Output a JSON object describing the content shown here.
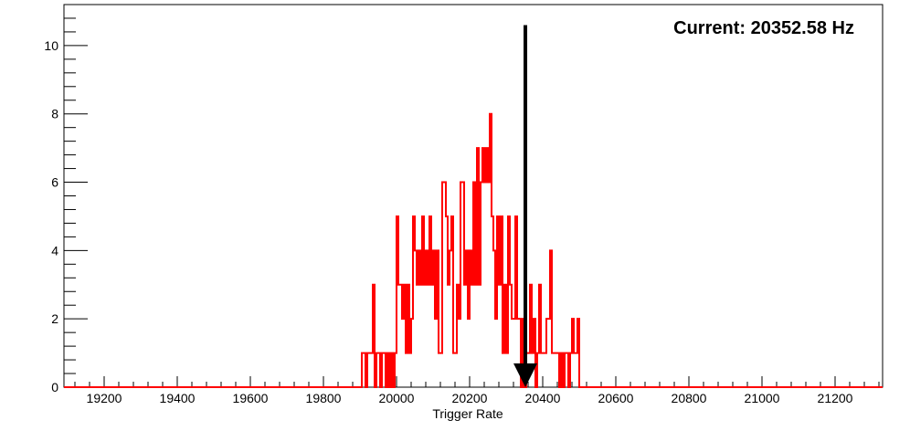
{
  "chart_data": {
    "type": "histogram",
    "title": "",
    "xlabel": "Trigger Rate",
    "ylabel": "",
    "xlim": [
      19090,
      21330
    ],
    "ylim": [
      0,
      11.2
    ],
    "x_ticks": [
      19200,
      19400,
      19600,
      19800,
      20000,
      20200,
      20400,
      20600,
      20800,
      21000,
      21200
    ],
    "x_tick_labels": [
      "19200",
      "19400",
      "19600",
      "19800",
      "20000",
      "20200",
      "20400",
      "20600",
      "20800",
      "21000",
      "21200"
    ],
    "y_ticks": [
      0,
      2,
      4,
      6,
      8,
      10
    ],
    "y_tick_labels": [
      "0",
      "2",
      "4",
      "6",
      "8",
      "10"
    ],
    "grid": false,
    "line_color": "#ff0000",
    "bins": [
      {
        "x": 19905,
        "y": 1
      },
      {
        "x": 19915,
        "y": 0
      },
      {
        "x": 19920,
        "y": 1
      },
      {
        "x": 19935,
        "y": 3
      },
      {
        "x": 19940,
        "y": 0
      },
      {
        "x": 19945,
        "y": 1
      },
      {
        "x": 19955,
        "y": 0
      },
      {
        "x": 19960,
        "y": 1
      },
      {
        "x": 19970,
        "y": 0
      },
      {
        "x": 19975,
        "y": 1
      },
      {
        "x": 19980,
        "y": 0
      },
      {
        "x": 19985,
        "y": 1
      },
      {
        "x": 19990,
        "y": 0
      },
      {
        "x": 19995,
        "y": 1
      },
      {
        "x": 20000,
        "y": 5
      },
      {
        "x": 20005,
        "y": 3
      },
      {
        "x": 20015,
        "y": 2
      },
      {
        "x": 20020,
        "y": 3
      },
      {
        "x": 20025,
        "y": 1
      },
      {
        "x": 20030,
        "y": 3
      },
      {
        "x": 20035,
        "y": 1
      },
      {
        "x": 20040,
        "y": 2
      },
      {
        "x": 20045,
        "y": 5
      },
      {
        "x": 20050,
        "y": 4
      },
      {
        "x": 20055,
        "y": 3
      },
      {
        "x": 20060,
        "y": 4
      },
      {
        "x": 20065,
        "y": 3
      },
      {
        "x": 20070,
        "y": 5
      },
      {
        "x": 20075,
        "y": 3
      },
      {
        "x": 20080,
        "y": 4
      },
      {
        "x": 20085,
        "y": 3
      },
      {
        "x": 20090,
        "y": 5
      },
      {
        "x": 20095,
        "y": 3
      },
      {
        "x": 20100,
        "y": 4
      },
      {
        "x": 20105,
        "y": 2
      },
      {
        "x": 20110,
        "y": 4
      },
      {
        "x": 20115,
        "y": 1
      },
      {
        "x": 20125,
        "y": 6
      },
      {
        "x": 20135,
        "y": 5
      },
      {
        "x": 20140,
        "y": 3
      },
      {
        "x": 20145,
        "y": 4
      },
      {
        "x": 20150,
        "y": 5
      },
      {
        "x": 20155,
        "y": 1
      },
      {
        "x": 20165,
        "y": 3
      },
      {
        "x": 20170,
        "y": 2
      },
      {
        "x": 20175,
        "y": 6
      },
      {
        "x": 20180,
        "y": 6
      },
      {
        "x": 20185,
        "y": 3
      },
      {
        "x": 20190,
        "y": 4
      },
      {
        "x": 20195,
        "y": 2
      },
      {
        "x": 20200,
        "y": 4
      },
      {
        "x": 20205,
        "y": 3
      },
      {
        "x": 20210,
        "y": 6
      },
      {
        "x": 20215,
        "y": 3
      },
      {
        "x": 20220,
        "y": 7
      },
      {
        "x": 20225,
        "y": 3
      },
      {
        "x": 20230,
        "y": 6
      },
      {
        "x": 20235,
        "y": 7
      },
      {
        "x": 20240,
        "y": 6
      },
      {
        "x": 20245,
        "y": 7
      },
      {
        "x": 20250,
        "y": 6
      },
      {
        "x": 20255,
        "y": 8
      },
      {
        "x": 20260,
        "y": 5
      },
      {
        "x": 20265,
        "y": 4
      },
      {
        "x": 20270,
        "y": 2
      },
      {
        "x": 20275,
        "y": 5
      },
      {
        "x": 20280,
        "y": 3
      },
      {
        "x": 20285,
        "y": 5
      },
      {
        "x": 20290,
        "y": 1
      },
      {
        "x": 20295,
        "y": 3
      },
      {
        "x": 20300,
        "y": 1
      },
      {
        "x": 20305,
        "y": 5
      },
      {
        "x": 20310,
        "y": 3
      },
      {
        "x": 20315,
        "y": 2
      },
      {
        "x": 20325,
        "y": 5
      },
      {
        "x": 20330,
        "y": 2
      },
      {
        "x": 20340,
        "y": 0
      },
      {
        "x": 20345,
        "y": 2
      },
      {
        "x": 20350,
        "y": 0
      },
      {
        "x": 20355,
        "y": 1
      },
      {
        "x": 20365,
        "y": 3
      },
      {
        "x": 20370,
        "y": 1
      },
      {
        "x": 20375,
        "y": 2
      },
      {
        "x": 20380,
        "y": 0
      },
      {
        "x": 20385,
        "y": 1
      },
      {
        "x": 20390,
        "y": 3
      },
      {
        "x": 20395,
        "y": 1
      },
      {
        "x": 20410,
        "y": 2
      },
      {
        "x": 20420,
        "y": 4
      },
      {
        "x": 20425,
        "y": 1
      },
      {
        "x": 20445,
        "y": 0
      },
      {
        "x": 20450,
        "y": 1
      },
      {
        "x": 20455,
        "y": 0
      },
      {
        "x": 20460,
        "y": 1
      },
      {
        "x": 20470,
        "y": 0
      },
      {
        "x": 20475,
        "y": 1
      },
      {
        "x": 20480,
        "y": 2
      },
      {
        "x": 20485,
        "y": 1
      },
      {
        "x": 20495,
        "y": 2
      },
      {
        "x": 20500,
        "y": 0
      }
    ],
    "hist_start": 19090,
    "hist_end": 21330,
    "marker": {
      "x": 20352.58,
      "y_top": 10.6,
      "y_bottom": 0,
      "color": "#000000"
    },
    "annotation": "Current: 20352.58 Hz"
  }
}
